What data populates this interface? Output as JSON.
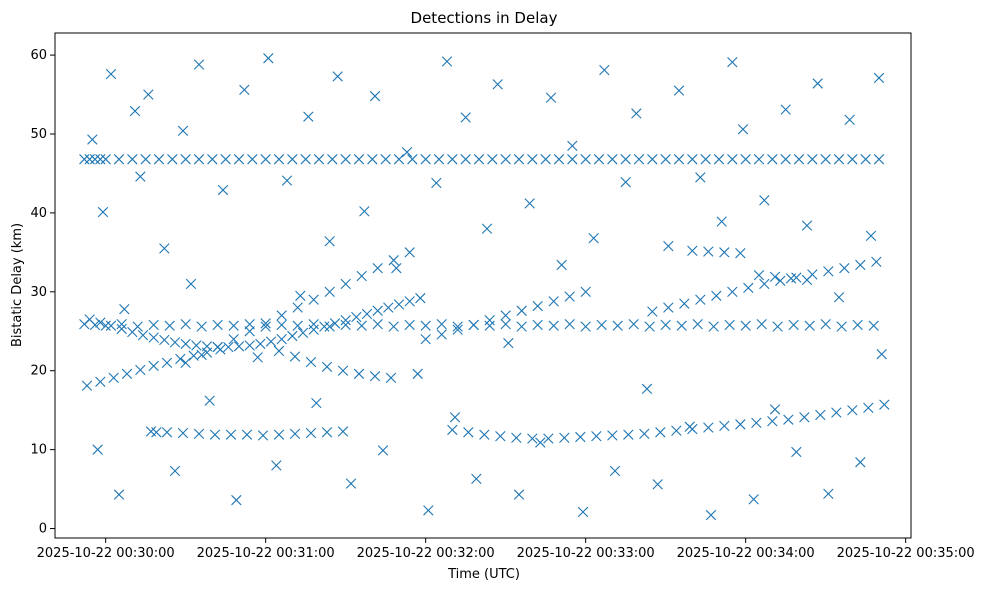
{
  "chart_data": {
    "type": "scatter",
    "title": "Detections in Delay",
    "xlabel": "Time (UTC)",
    "ylabel": "Bistatic Delay (km)",
    "marker": "x",
    "color": "#1f77b4",
    "grid": false,
    "legend": "none",
    "x_unit": "time",
    "xlim": [
      "2025-10-22 00:29:41",
      "2025-10-22 00:35:02"
    ],
    "ylim": [
      -1.2,
      62.8
    ],
    "x_ticks": [
      "2025-10-22 00:30:00",
      "2025-10-22 00:31:00",
      "2025-10-22 00:32:00",
      "2025-10-22 00:33:00",
      "2025-10-22 00:34:00",
      "2025-10-22 00:35:00"
    ],
    "y_ticks": [
      0,
      10,
      20,
      30,
      40,
      50,
      60
    ],
    "series": [
      {
        "x": [
          "2025-10-22 00:29:52",
          "2025-10-22 00:29:54",
          "2025-10-22 00:29:56",
          "2025-10-22 00:29:58",
          "2025-10-22 00:30:00",
          "2025-10-22 00:30:05",
          "2025-10-22 00:30:10",
          "2025-10-22 00:30:15",
          "2025-10-22 00:30:20",
          "2025-10-22 00:30:25",
          "2025-10-22 00:30:30",
          "2025-10-22 00:30:35",
          "2025-10-22 00:30:40",
          "2025-10-22 00:30:45",
          "2025-10-22 00:30:50",
          "2025-10-22 00:30:55",
          "2025-10-22 00:31:00",
          "2025-10-22 00:31:05",
          "2025-10-22 00:31:10",
          "2025-10-22 00:31:15",
          "2025-10-22 00:31:20",
          "2025-10-22 00:31:25",
          "2025-10-22 00:31:30",
          "2025-10-22 00:31:35",
          "2025-10-22 00:31:40",
          "2025-10-22 00:31:45",
          "2025-10-22 00:31:50",
          "2025-10-22 00:31:55",
          "2025-10-22 00:32:00",
          "2025-10-22 00:32:05",
          "2025-10-22 00:32:10",
          "2025-10-22 00:32:15",
          "2025-10-22 00:32:20",
          "2025-10-22 00:32:25",
          "2025-10-22 00:32:30",
          "2025-10-22 00:32:35",
          "2025-10-22 00:32:40",
          "2025-10-22 00:32:45",
          "2025-10-22 00:32:50",
          "2025-10-22 00:32:55",
          "2025-10-22 00:33:00",
          "2025-10-22 00:33:05",
          "2025-10-22 00:33:10",
          "2025-10-22 00:33:15",
          "2025-10-22 00:33:20",
          "2025-10-22 00:33:25",
          "2025-10-22 00:33:30",
          "2025-10-22 00:33:35",
          "2025-10-22 00:33:40",
          "2025-10-22 00:33:45",
          "2025-10-22 00:33:50",
          "2025-10-22 00:33:55",
          "2025-10-22 00:34:00",
          "2025-10-22 00:34:05",
          "2025-10-22 00:34:10",
          "2025-10-22 00:34:15",
          "2025-10-22 00:34:20",
          "2025-10-22 00:34:25",
          "2025-10-22 00:34:30",
          "2025-10-22 00:34:35",
          "2025-10-22 00:34:40",
          "2025-10-22 00:34:45",
          "2025-10-22 00:34:50",
          "2025-10-22 00:29:52",
          "2025-10-22 00:29:56",
          "2025-10-22 00:30:00",
          "2025-10-22 00:30:06",
          "2025-10-22 00:30:12",
          "2025-10-22 00:30:18",
          "2025-10-22 00:30:24",
          "2025-10-22 00:30:30",
          "2025-10-22 00:30:36",
          "2025-10-22 00:30:42",
          "2025-10-22 00:30:48",
          "2025-10-22 00:30:54",
          "2025-10-22 00:31:00",
          "2025-10-22 00:31:06",
          "2025-10-22 00:31:12",
          "2025-10-22 00:31:18",
          "2025-10-22 00:31:24",
          "2025-10-22 00:31:30",
          "2025-10-22 00:31:36",
          "2025-10-22 00:31:42",
          "2025-10-22 00:31:48",
          "2025-10-22 00:31:54",
          "2025-10-22 00:32:00",
          "2025-10-22 00:32:06",
          "2025-10-22 00:32:12",
          "2025-10-22 00:32:18",
          "2025-10-22 00:32:24",
          "2025-10-22 00:32:30",
          "2025-10-22 00:32:36",
          "2025-10-22 00:32:42",
          "2025-10-22 00:32:48",
          "2025-10-22 00:32:54",
          "2025-10-22 00:33:00",
          "2025-10-22 00:33:06",
          "2025-10-22 00:33:12",
          "2025-10-22 00:33:18",
          "2025-10-22 00:33:24",
          "2025-10-22 00:33:30",
          "2025-10-22 00:33:36",
          "2025-10-22 00:33:42",
          "2025-10-22 00:33:48",
          "2025-10-22 00:33:54",
          "2025-10-22 00:34:00",
          "2025-10-22 00:34:06",
          "2025-10-22 00:34:12",
          "2025-10-22 00:34:18",
          "2025-10-22 00:34:24",
          "2025-10-22 00:34:30",
          "2025-10-22 00:34:36",
          "2025-10-22 00:34:42",
          "2025-10-22 00:34:48",
          "2025-10-22 00:29:53",
          "2025-10-22 00:29:58",
          "2025-10-22 00:30:03",
          "2025-10-22 00:30:08",
          "2025-10-22 00:30:13",
          "2025-10-22 00:30:18",
          "2025-10-22 00:30:23",
          "2025-10-22 00:30:28",
          "2025-10-22 00:30:33",
          "2025-10-22 00:30:38",
          "2025-10-22 00:30:43",
          "2025-10-22 00:30:17",
          "2025-10-22 00:30:23",
          "2025-10-22 00:30:29",
          "2025-10-22 00:30:35",
          "2025-10-22 00:30:41",
          "2025-10-22 00:30:47",
          "2025-10-22 00:30:53",
          "2025-10-22 00:30:59",
          "2025-10-22 00:31:05",
          "2025-10-22 00:31:11",
          "2025-10-22 00:31:17",
          "2025-10-22 00:31:23",
          "2025-10-22 00:31:29",
          "2025-10-22 00:32:10",
          "2025-10-22 00:32:16",
          "2025-10-22 00:32:22",
          "2025-10-22 00:32:28",
          "2025-10-22 00:32:34",
          "2025-10-22 00:32:40",
          "2025-10-22 00:32:46",
          "2025-10-22 00:32:52",
          "2025-10-22 00:32:58",
          "2025-10-22 00:33:04",
          "2025-10-22 00:33:10",
          "2025-10-22 00:33:16",
          "2025-10-22 00:33:22",
          "2025-10-22 00:33:28",
          "2025-10-22 00:33:34",
          "2025-10-22 00:33:40",
          "2025-10-22 00:33:46",
          "2025-10-22 00:33:52",
          "2025-10-22 00:33:58",
          "2025-10-22 00:34:04",
          "2025-10-22 00:34:10",
          "2025-10-22 00:34:16",
          "2025-10-22 00:34:22",
          "2025-10-22 00:34:28",
          "2025-10-22 00:34:34",
          "2025-10-22 00:34:40",
          "2025-10-22 00:34:46",
          "2025-10-22 00:34:52",
          "2025-10-22 00:29:54",
          "2025-10-22 00:29:58",
          "2025-10-22 00:30:02",
          "2025-10-22 00:30:06",
          "2025-10-22 00:30:10",
          "2025-10-22 00:30:14",
          "2025-10-22 00:30:18",
          "2025-10-22 00:30:22",
          "2025-10-22 00:30:26",
          "2025-10-22 00:30:30",
          "2025-10-22 00:30:34",
          "2025-10-22 00:30:38",
          "2025-10-22 00:30:42",
          "2025-10-22 00:30:46",
          "2025-10-22 00:30:50",
          "2025-10-22 00:30:54",
          "2025-10-22 00:30:58",
          "2025-10-22 00:31:02",
          "2025-10-22 00:31:06",
          "2025-10-22 00:31:10",
          "2025-10-22 00:31:14",
          "2025-10-22 00:31:18",
          "2025-10-22 00:31:22",
          "2025-10-22 00:31:26",
          "2025-10-22 00:31:30",
          "2025-10-22 00:31:34",
          "2025-10-22 00:31:38",
          "2025-10-22 00:31:42",
          "2025-10-22 00:31:46",
          "2025-10-22 00:31:50",
          "2025-10-22 00:31:54",
          "2025-10-22 00:31:58",
          "2025-10-22 00:32:00",
          "2025-10-22 00:32:06",
          "2025-10-22 00:32:12",
          "2025-10-22 00:32:18",
          "2025-10-22 00:32:24",
          "2025-10-22 00:32:30",
          "2025-10-22 00:32:36",
          "2025-10-22 00:32:42",
          "2025-10-22 00:32:48",
          "2025-10-22 00:32:54",
          "2025-10-22 00:33:00",
          "2025-10-22 00:30:30",
          "2025-10-22 00:30:36",
          "2025-10-22 00:30:42",
          "2025-10-22 00:30:48",
          "2025-10-22 00:30:54",
          "2025-10-22 00:31:00",
          "2025-10-22 00:31:06",
          "2025-10-22 00:31:12",
          "2025-10-22 00:31:18",
          "2025-10-22 00:31:24",
          "2025-10-22 00:31:30",
          "2025-10-22 00:31:36",
          "2025-10-22 00:31:42",
          "2025-10-22 00:31:48",
          "2025-10-22 00:31:54",
          "2025-10-22 00:31:05",
          "2025-10-22 00:31:11",
          "2025-10-22 00:31:17",
          "2025-10-22 00:31:23",
          "2025-10-22 00:31:29",
          "2025-10-22 00:31:35",
          "2025-10-22 00:31:41",
          "2025-10-22 00:31:47",
          "2025-10-22 00:33:25",
          "2025-10-22 00:33:31",
          "2025-10-22 00:33:37",
          "2025-10-22 00:33:43",
          "2025-10-22 00:33:49",
          "2025-10-22 00:33:55",
          "2025-10-22 00:34:01",
          "2025-10-22 00:34:07",
          "2025-10-22 00:34:13",
          "2025-10-22 00:34:19",
          "2025-10-22 00:34:25",
          "2025-10-22 00:34:31",
          "2025-10-22 00:34:37",
          "2025-10-22 00:34:43",
          "2025-10-22 00:34:49",
          "2025-10-22 00:33:40",
          "2025-10-22 00:33:46",
          "2025-10-22 00:33:52",
          "2025-10-22 00:33:58",
          "2025-10-22 00:34:05",
          "2025-10-22 00:34:11",
          "2025-10-22 00:34:17",
          "2025-10-22 00:34:23",
          "2025-10-22 00:29:55",
          "2025-10-22 00:29:57",
          "2025-10-22 00:29:59",
          "2025-10-22 00:30:02",
          "2025-10-22 00:30:05",
          "2025-10-22 00:30:07",
          "2025-10-22 00:30:11",
          "2025-10-22 00:30:13",
          "2025-10-22 00:30:16",
          "2025-10-22 00:30:19",
          "2025-10-22 00:30:22",
          "2025-10-22 00:30:26",
          "2025-10-22 00:30:29",
          "2025-10-22 00:30:32",
          "2025-10-22 00:30:35",
          "2025-10-22 00:30:39",
          "2025-10-22 00:30:44",
          "2025-10-22 00:30:49",
          "2025-10-22 00:30:52",
          "2025-10-22 00:30:57",
          "2025-10-22 00:31:01",
          "2025-10-22 00:31:04",
          "2025-10-22 00:31:08",
          "2025-10-22 00:31:13",
          "2025-10-22 00:31:16",
          "2025-10-22 00:31:19",
          "2025-10-22 00:31:24",
          "2025-10-22 00:31:27",
          "2025-10-22 00:31:32",
          "2025-10-22 00:31:37",
          "2025-10-22 00:31:41",
          "2025-10-22 00:31:44",
          "2025-10-22 00:31:49",
          "2025-10-22 00:31:53",
          "2025-10-22 00:31:57",
          "2025-10-22 00:32:01",
          "2025-10-22 00:32:04",
          "2025-10-22 00:32:08",
          "2025-10-22 00:32:11",
          "2025-10-22 00:32:15",
          "2025-10-22 00:32:19",
          "2025-10-22 00:32:23",
          "2025-10-22 00:32:27",
          "2025-10-22 00:32:31",
          "2025-10-22 00:32:35",
          "2025-10-22 00:32:39",
          "2025-10-22 00:32:43",
          "2025-10-22 00:32:47",
          "2025-10-22 00:32:51",
          "2025-10-22 00:32:55",
          "2025-10-22 00:32:59",
          "2025-10-22 00:33:03",
          "2025-10-22 00:33:07",
          "2025-10-22 00:33:11",
          "2025-10-22 00:33:15",
          "2025-10-22 00:33:19",
          "2025-10-22 00:33:23",
          "2025-10-22 00:33:27",
          "2025-10-22 00:33:31",
          "2025-10-22 00:33:35",
          "2025-10-22 00:33:39",
          "2025-10-22 00:33:43",
          "2025-10-22 00:33:47",
          "2025-10-22 00:33:51",
          "2025-10-22 00:33:55",
          "2025-10-22 00:33:59",
          "2025-10-22 00:34:03",
          "2025-10-22 00:34:07",
          "2025-10-22 00:34:11",
          "2025-10-22 00:34:15",
          "2025-10-22 00:34:19",
          "2025-10-22 00:34:23",
          "2025-10-22 00:34:27",
          "2025-10-22 00:34:31",
          "2025-10-22 00:34:35",
          "2025-10-22 00:34:39",
          "2025-10-22 00:34:43",
          "2025-10-22 00:34:47",
          "2025-10-22 00:34:50",
          "2025-10-22 00:34:51"
        ],
        "y": [
          46.8,
          46.8,
          46.8,
          46.8,
          46.8,
          46.8,
          46.8,
          46.8,
          46.8,
          46.8,
          46.8,
          46.8,
          46.8,
          46.8,
          46.8,
          46.8,
          46.8,
          46.8,
          46.8,
          46.8,
          46.8,
          46.8,
          46.8,
          46.8,
          46.8,
          46.8,
          46.8,
          46.8,
          46.8,
          46.8,
          46.8,
          46.8,
          46.8,
          46.8,
          46.8,
          46.8,
          46.8,
          46.8,
          46.8,
          46.8,
          46.8,
          46.8,
          46.8,
          46.8,
          46.8,
          46.8,
          46.8,
          46.8,
          46.8,
          46.8,
          46.8,
          46.8,
          46.8,
          46.8,
          46.8,
          46.8,
          46.8,
          46.8,
          46.8,
          46.8,
          46.8,
          46.8,
          46.8,
          25.9,
          25.8,
          25.7,
          25.9,
          25.6,
          25.8,
          25.7,
          25.9,
          25.6,
          25.8,
          25.7,
          25.9,
          25.6,
          25.8,
          25.7,
          25.9,
          25.6,
          25.8,
          25.7,
          25.9,
          25.6,
          25.8,
          25.7,
          25.9,
          25.6,
          25.8,
          25.7,
          25.9,
          25.6,
          25.8,
          25.7,
          25.9,
          25.6,
          25.8,
          25.7,
          25.9,
          25.6,
          25.8,
          25.7,
          25.9,
          25.6,
          25.8,
          25.7,
          25.9,
          25.6,
          25.8,
          25.7,
          25.9,
          25.6,
          25.8,
          25.7,
          18.1,
          18.6,
          19.1,
          19.6,
          20.1,
          20.6,
          21.0,
          21.5,
          21.9,
          22.3,
          22.7,
          12.3,
          12.2,
          12.1,
          12.0,
          11.9,
          11.9,
          11.9,
          11.8,
          11.9,
          12.0,
          12.1,
          12.2,
          12.3,
          12.5,
          12.2,
          11.9,
          11.7,
          11.5,
          11.4,
          11.4,
          11.5,
          11.6,
          11.7,
          11.8,
          11.9,
          12.0,
          12.2,
          12.4,
          12.6,
          12.8,
          13.0,
          13.2,
          13.4,
          13.6,
          13.8,
          14.1,
          14.4,
          14.7,
          15.0,
          15.3,
          15.7,
          26.5,
          26.1,
          25.7,
          25.3,
          24.9,
          24.5,
          24.2,
          23.9,
          23.6,
          23.4,
          23.2,
          23.1,
          23.0,
          23.0,
          23.1,
          23.2,
          23.4,
          23.7,
          24.0,
          24.4,
          24.8,
          25.2,
          25.6,
          26.0,
          26.4,
          26.8,
          27.2,
          27.6,
          28.0,
          28.4,
          28.8,
          29.2,
          24.0,
          24.6,
          25.2,
          25.8,
          26.4,
          27.0,
          27.6,
          28.2,
          28.8,
          29.4,
          30.0,
          21.0,
          22.0,
          23.0,
          24.0,
          25.0,
          26.0,
          27.0,
          28.0,
          29.0,
          30.0,
          31.0,
          32.0,
          33.0,
          34.0,
          35.0,
          22.5,
          21.8,
          21.1,
          20.5,
          20.0,
          19.6,
          19.3,
          19.1,
          27.5,
          28.0,
          28.5,
          29.0,
          29.5,
          30.0,
          30.5,
          31.0,
          31.4,
          31.8,
          32.2,
          32.6,
          33.0,
          33.4,
          33.8,
          35.2,
          35.1,
          35.0,
          34.9,
          32.1,
          31.9,
          31.7,
          31.5,
          49.3,
          10.0,
          40.1,
          57.6,
          4.3,
          27.8,
          52.9,
          44.6,
          55.0,
          12.2,
          35.5,
          7.3,
          50.4,
          31.0,
          58.8,
          16.2,
          42.9,
          3.6,
          55.6,
          21.7,
          59.6,
          8.0,
          44.1,
          29.5,
          52.2,
          15.9,
          36.4,
          57.3,
          5.7,
          40.2,
          54.8,
          9.9,
          33.0,
          47.7,
          19.6,
          2.3,
          43.8,
          59.2,
          14.1,
          52.1,
          6.3,
          38.0,
          56.3,
          23.5,
          4.3,
          41.2,
          10.9,
          54.6,
          33.4,
          48.5,
          2.1,
          36.8,
          58.1,
          7.3,
          43.9,
          52.6,
          17.7,
          5.6,
          35.8,
          55.5,
          12.9,
          44.5,
          1.7,
          38.9,
          59.1,
          50.6,
          3.7,
          41.6,
          15.1,
          53.1,
          9.7,
          38.4,
          56.4,
          4.4,
          29.3,
          51.8,
          8.4,
          37.1,
          57.1,
          22.1
        ]
      }
    ]
  }
}
